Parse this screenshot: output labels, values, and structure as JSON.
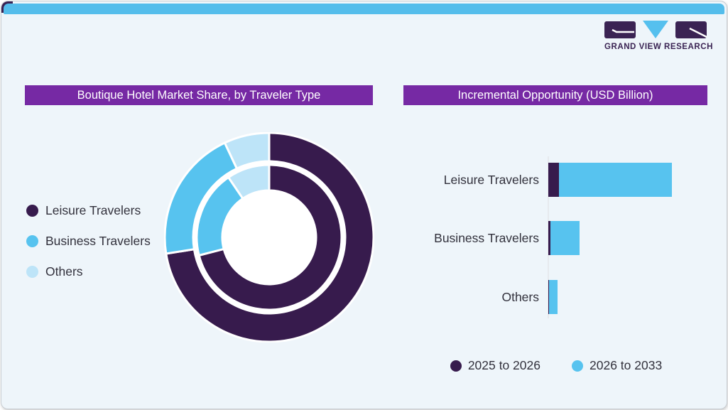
{
  "brand": {
    "name": "GRAND VIEW RESEARCH"
  },
  "theme": {
    "top_bar": "#54bdeb",
    "card_bg": "#eef5fa",
    "title_bar": "#7629a4",
    "title_text": "#ffffff",
    "text": "#32313c",
    "axis": "#e6eaee",
    "separator_white": "#ffffff",
    "logo_purple": "#3a2353",
    "logo_blue": "#55c0ee"
  },
  "chart_data": [
    {
      "type": "pie",
      "variant": "double_ring_donut",
      "title": "Boutique Hotel Market Share, by Traveler Type",
      "categories": [
        "Leisure Travelers",
        "Business Travelers",
        "Others"
      ],
      "colors": [
        "#371b4d",
        "#57c3ef",
        "#bde4f8"
      ],
      "rings": [
        {
          "name": "outer",
          "values_pct": [
            72.5,
            20.5,
            7.0
          ]
        },
        {
          "name": "inner",
          "values_pct": [
            71.0,
            19.5,
            9.5
          ]
        }
      ],
      "start_angle_deg": 0,
      "direction": "clockwise",
      "legend_position": "left"
    },
    {
      "type": "bar",
      "orientation": "horizontal",
      "stacked": true,
      "title": "Incremental Opportunity (USD Billion)",
      "categories": [
        "Leisure Travelers",
        "Business Travelers",
        "Others"
      ],
      "series": [
        {
          "name": "2025 to 2026",
          "color": "#371b4d",
          "values": [
            1.5,
            0.3,
            0.1
          ]
        },
        {
          "name": "2026 to 2033",
          "color": "#57c3ef",
          "values": [
            15.9,
            4.1,
            1.2
          ]
        }
      ],
      "units": "relative (no numeric axis shown)",
      "legend_position": "bottom"
    }
  ]
}
